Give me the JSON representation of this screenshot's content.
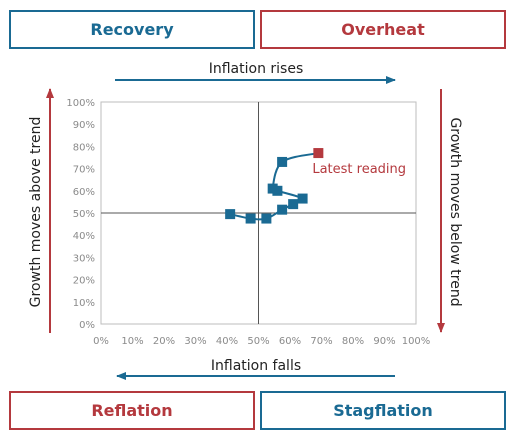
{
  "quadrants": {
    "top_left": "Recovery",
    "top_right": "Overheat",
    "bottom_left": "Reflation",
    "bottom_right": "Stagflation"
  },
  "arrows": {
    "top": "Inflation rises",
    "bottom": "Inflation falls",
    "left": "Growth moves above trend",
    "right": "Growth moves below trend"
  },
  "colors": {
    "blue": "#1a6a93",
    "red": "#b4393e",
    "point": "#1a6a93",
    "latest_point": "#b4393e"
  },
  "chart_data": {
    "type": "scatter",
    "x_ticks": [
      "0%",
      "10%",
      "20%",
      "30%",
      "40%",
      "50%",
      "60%",
      "70%",
      "80%",
      "90%",
      "100%"
    ],
    "y_ticks": [
      "0%",
      "10%",
      "20%",
      "30%",
      "40%",
      "50%",
      "60%",
      "70%",
      "80%",
      "90%",
      "100%"
    ],
    "xlim": [
      0,
      100
    ],
    "ylim": [
      0,
      100
    ],
    "grid": false,
    "series": [
      {
        "points": [
          {
            "x": 41,
            "y": 49.5
          },
          {
            "x": 47.5,
            "y": 47.5
          },
          {
            "x": 52.5,
            "y": 47.5
          },
          {
            "x": 57.5,
            "y": 51.5
          },
          {
            "x": 61,
            "y": 54
          },
          {
            "x": 64,
            "y": 56.5
          },
          {
            "x": 56,
            "y": 60
          },
          {
            "x": 54.5,
            "y": 61
          },
          {
            "x": 57.5,
            "y": 73
          },
          {
            "x": 69,
            "y": 77
          }
        ]
      }
    ],
    "annotation": {
      "text": "Latest reading",
      "point_index": 9
    }
  }
}
